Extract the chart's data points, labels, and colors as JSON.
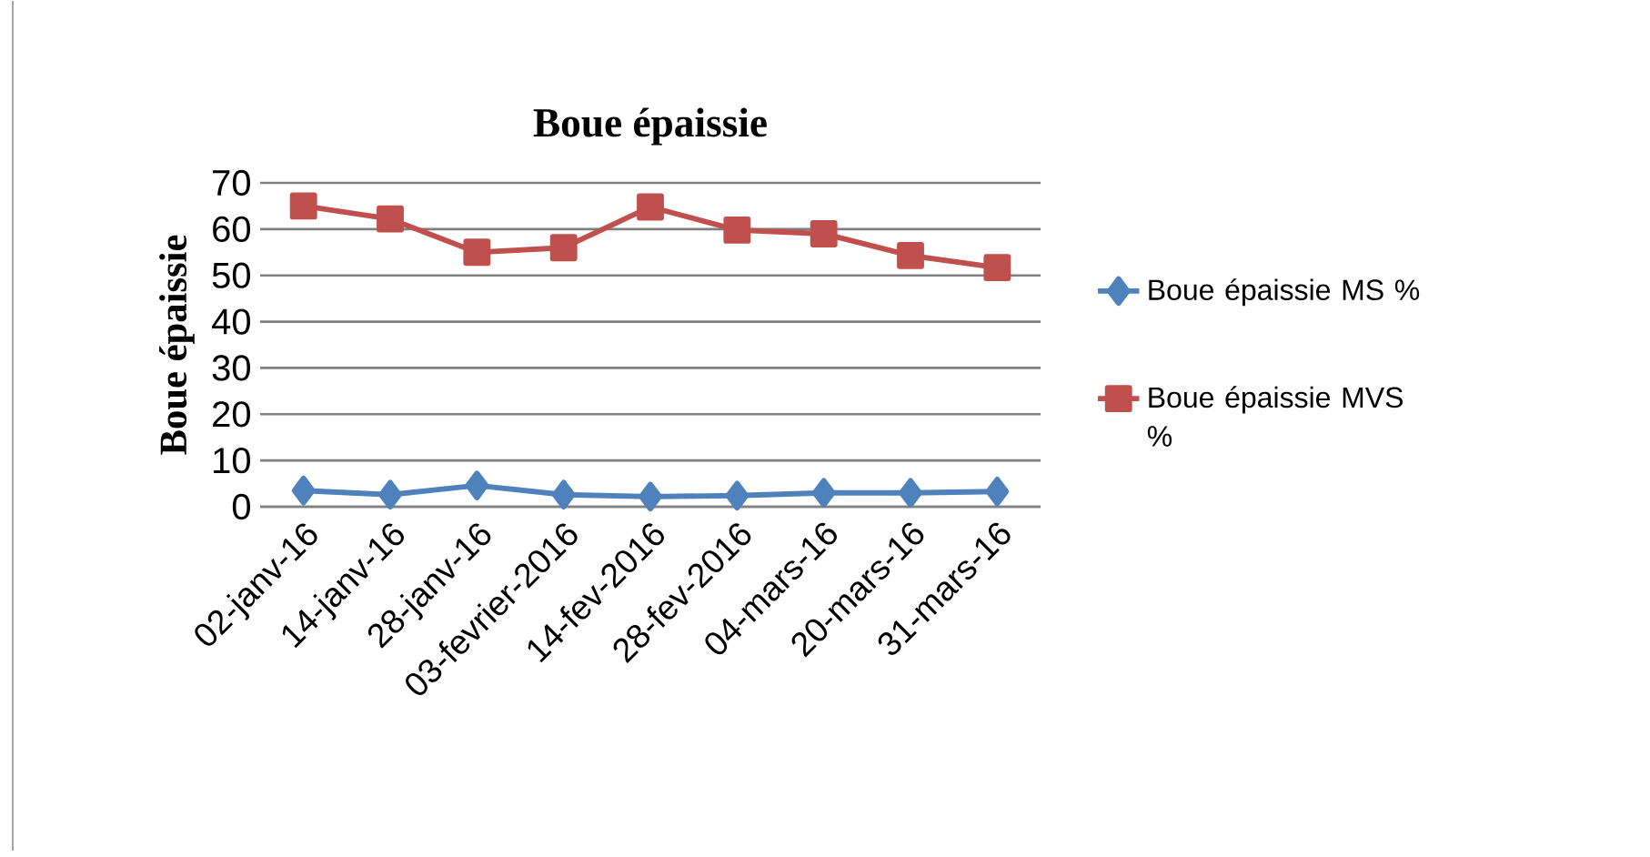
{
  "chart_data": {
    "type": "line",
    "title": "Boue épaissie",
    "ylabel": "Boue épaissie",
    "categories": [
      "02-janv-16",
      "14-janv-16",
      "28-janv-16",
      "03-fevrier-2016",
      "14-fev-2016",
      "28-fev-2016",
      "04-mars-16",
      "20-mars-16",
      "31-mars-16"
    ],
    "series": [
      {
        "name": "Boue épaissie  MS %",
        "color": "#4f81bd",
        "marker": "diamond",
        "values": [
          3.5,
          2.6,
          4.6,
          2.6,
          2.2,
          2.4,
          3,
          3,
          3.3
        ]
      },
      {
        "name": "Boue épaissie  MVS %",
        "color": "#c0504d",
        "marker": "square",
        "values": [
          65,
          62.2,
          55,
          56,
          64.8,
          59.8,
          59,
          54.3,
          51.7
        ]
      }
    ],
    "ylim": [
      0,
      70
    ],
    "yticks": [
      0,
      10,
      20,
      30,
      40,
      50,
      60,
      70
    ],
    "grid": "y",
    "legend": "right"
  }
}
